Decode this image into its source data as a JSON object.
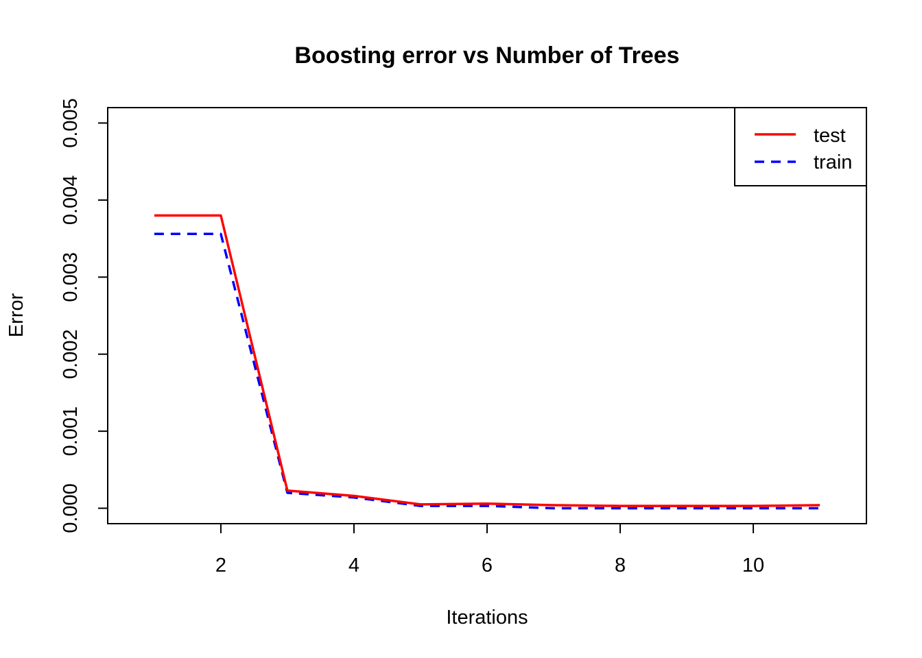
{
  "chart_data": {
    "type": "line",
    "title": "Boosting error vs Number of Trees",
    "xlabel": "Iterations",
    "ylabel": "Error",
    "xlim": [
      0.3,
      11.7
    ],
    "ylim": [
      -0.0002,
      0.0052
    ],
    "x_ticks": [
      2,
      4,
      6,
      8,
      10
    ],
    "x_tick_labels": [
      "2",
      "4",
      "6",
      "8",
      "10"
    ],
    "y_ticks": [
      0,
      0.001,
      0.002,
      0.003,
      0.004,
      0.005
    ],
    "y_tick_labels": [
      "0.000",
      "0.001",
      "0.002",
      "0.003",
      "0.004",
      "0.005"
    ],
    "grid": false,
    "legend_position": "top-right",
    "x": [
      1,
      2,
      3,
      4,
      5,
      6,
      7,
      8,
      9,
      10,
      11
    ],
    "series": [
      {
        "name": "test",
        "color": "#ff0000",
        "style": "solid",
        "values": [
          0.0038,
          0.0038,
          0.00023,
          0.00016,
          5e-05,
          6e-05,
          4e-05,
          3e-05,
          3e-05,
          3e-05,
          4e-05
        ]
      },
      {
        "name": "train",
        "color": "#0000ff",
        "style": "dashed",
        "values": [
          0.00356,
          0.00356,
          0.0002,
          0.00014,
          3e-05,
          3e-05,
          0.0,
          0.0,
          0.0,
          0.0,
          0.0
        ]
      }
    ]
  }
}
